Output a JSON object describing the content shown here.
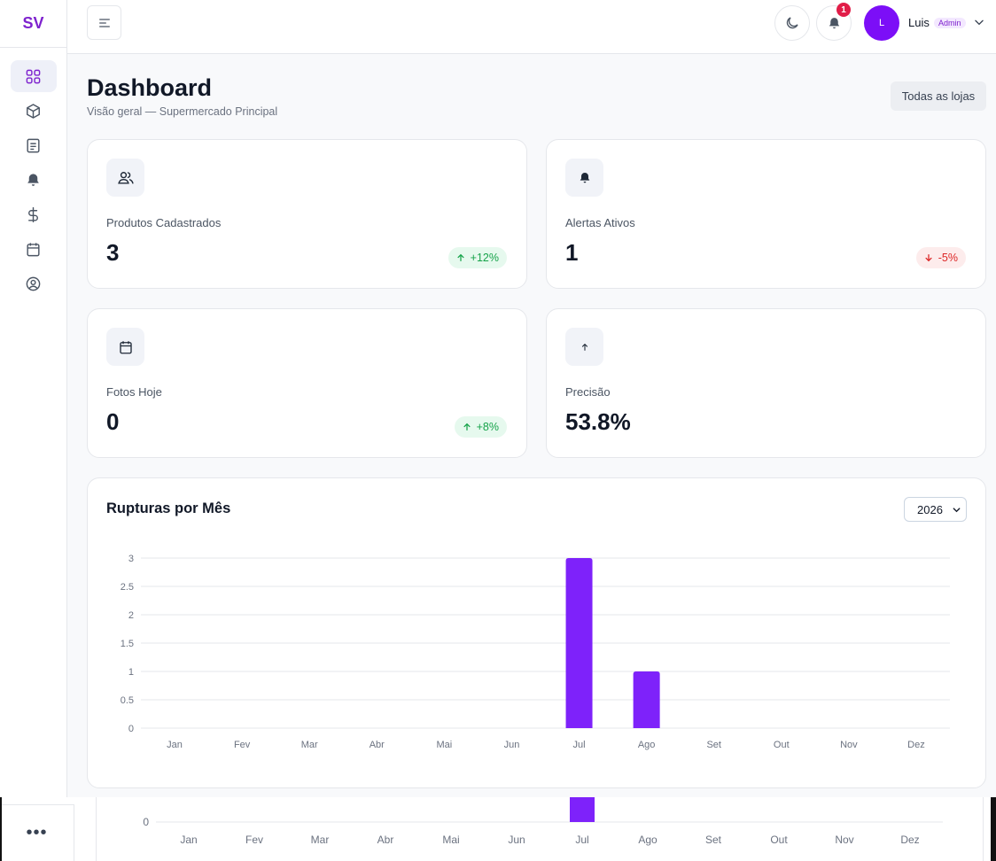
{
  "brand": {
    "logo": "SV",
    "accent": "#7e22ce"
  },
  "sidebar": {
    "items": [
      {
        "icon": "dashboard-grid-icon",
        "active": true
      },
      {
        "icon": "package-box-icon",
        "active": false
      },
      {
        "icon": "list-document-icon",
        "active": false
      },
      {
        "icon": "bell-icon",
        "active": false
      },
      {
        "icon": "dollar-icon",
        "active": false
      },
      {
        "icon": "calendar-icon",
        "active": false
      },
      {
        "icon": "user-circle-icon",
        "active": false
      }
    ],
    "more": "•••"
  },
  "header": {
    "notifications": "1",
    "avatar_initial": "L",
    "user_name": "Luis",
    "user_role": "Admin"
  },
  "page": {
    "title": "Dashboard",
    "subtitle": "Visão geral — Supermercado Principal",
    "store_button": "Todas as lojas"
  },
  "stats": [
    {
      "icon": "users-icon",
      "label": "Produtos Cadastrados",
      "value": "3",
      "badge": "+12%",
      "trend": "up"
    },
    {
      "icon": "bell-icon",
      "label": "Alertas Ativos",
      "value": "1",
      "badge": "-5%",
      "trend": "down"
    },
    {
      "icon": "calendar-icon",
      "label": "Fotos Hoje",
      "value": "0",
      "badge": "+8%",
      "trend": "up"
    },
    {
      "icon": "arrow-up-icon",
      "label": "Precisão",
      "value": "53.8%",
      "badge": "",
      "trend": ""
    }
  ],
  "chart_section": {
    "title": "Rupturas por Mês",
    "year": "2026"
  },
  "chart_data": {
    "type": "bar",
    "title": "Rupturas por Mês",
    "categories": [
      "Jan",
      "Fev",
      "Mar",
      "Abr",
      "Mai",
      "Jun",
      "Jul",
      "Ago",
      "Set",
      "Out",
      "Nov",
      "Dez"
    ],
    "values": [
      0,
      0,
      0,
      0,
      0,
      0,
      3,
      1,
      0,
      0,
      0,
      0
    ],
    "ylim": [
      0,
      3
    ],
    "yticks": [
      "0",
      "0.5",
      "1",
      "1.5",
      "2",
      "2.5",
      "3"
    ],
    "grid": true,
    "color": "#7e22fa"
  },
  "preview": {
    "ytick": "0",
    "categories": [
      "Jan",
      "Fev",
      "Mar",
      "Abr",
      "Mai",
      "Jun",
      "Jul",
      "Ago",
      "Set",
      "Out",
      "Nov",
      "Dez"
    ]
  }
}
